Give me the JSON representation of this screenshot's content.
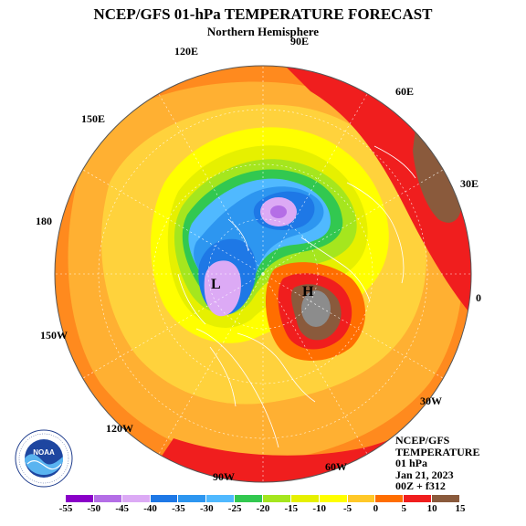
{
  "title": "NCEP/GFS 01-hPa TEMPERATURE FORECAST",
  "subtitle": "Northern Hemisphere",
  "longitude_labels": {
    "lon_90e": "90E",
    "lon_120e": "120E",
    "lon_60e": "60E",
    "lon_150e": "150E",
    "lon_30e": "30E",
    "lon_180": "180",
    "lon_0": "0",
    "lon_150w": "150W",
    "lon_30w": "30W",
    "lon_120w": "120W",
    "lon_90w": "90W",
    "lon_60w": "60W"
  },
  "map_markers": {
    "low": "L",
    "high": "H"
  },
  "info_block": {
    "line1": "NCEP/GFS",
    "line2": "TEMPERATURE",
    "line3": "01 hPa",
    "line4": "Jan 21, 2023",
    "line5": "00Z + f312"
  },
  "colorbar": {
    "labels": [
      "-55",
      "-50",
      "-45",
      "-40",
      "-35",
      "-30",
      "-25",
      "-20",
      "-15",
      "-10",
      "-5",
      "0",
      "5",
      "10",
      "15"
    ],
    "colors": [
      "#8a00c8",
      "#b46ee6",
      "#dcaaf5",
      "#1e78e6",
      "#2d96f0",
      "#50b9ff",
      "#32c850",
      "#a5e61e",
      "#e6f000",
      "#ffff00",
      "#ffc828",
      "#ff6e00",
      "#f01e1e",
      "#8a5a3c"
    ]
  },
  "logo": {
    "name": "NOAA",
    "ring_text": "NATIONAL OCEANIC AND ATMOSPHERIC ADMINISTRATION · U.S. DEPARTMENT OF COMMERCE"
  }
}
